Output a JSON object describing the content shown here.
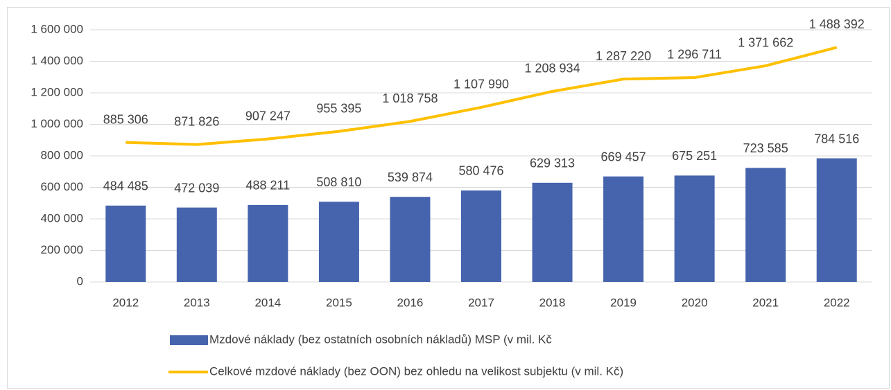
{
  "chart_data": {
    "type": "bar",
    "categories": [
      "2012",
      "2013",
      "2014",
      "2015",
      "2016",
      "2017",
      "2018",
      "2019",
      "2020",
      "2021",
      "2022"
    ],
    "series": [
      {
        "name": "Mzdové náklady (bez ostatních osobních nákladů) MSP (v mil. Kč",
        "type": "bar",
        "color": "#4664ad",
        "values": [
          484485,
          472039,
          488211,
          508810,
          539874,
          580476,
          629313,
          669457,
          675251,
          723585,
          784516
        ],
        "value_labels": [
          "484 485",
          "472 039",
          "488 211",
          "508 810",
          "539 874",
          "580 476",
          "629 313",
          "669 457",
          "675 251",
          "723 585",
          "784 516"
        ]
      },
      {
        "name": "Celkové mzdové náklady (bez OON) bez ohledu na velikost subjektu (v mil. Kč)",
        "type": "line",
        "color": "#ffc000",
        "values": [
          885306,
          871826,
          907247,
          955395,
          1018758,
          1107990,
          1208934,
          1287220,
          1296711,
          1371662,
          1488392
        ],
        "value_labels": [
          "885 306",
          "871 826",
          "907 247",
          "955 395",
          "1 018 758",
          "1 107 990",
          "1 208 934",
          "1 287 220",
          "1 296 711",
          "1 371 662",
          "1 488 392"
        ]
      }
    ],
    "ylim": [
      0,
      1600000
    ],
    "yticks": [
      0,
      {
        "value": 200000,
        "label": "200 000"
      },
      {
        "value": 400000,
        "label": "400 000"
      },
      {
        "value": 600000,
        "label": "600 000"
      },
      {
        "value": 800000,
        "label": "800 000"
      },
      {
        "value": 1000000,
        "label": "1 000 000"
      },
      {
        "value": 1200000,
        "label": "1 200 000"
      },
      {
        "value": 1400000,
        "label": "1 400 000"
      },
      {
        "value": 1600000,
        "label": "1 600 000"
      }
    ],
    "grid": true,
    "legend": "bottom"
  }
}
